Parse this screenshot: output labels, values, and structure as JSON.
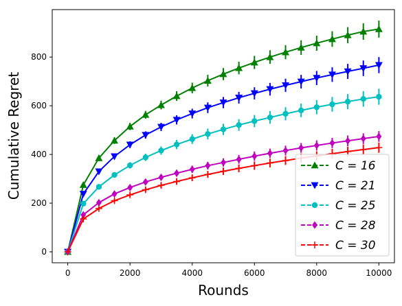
{
  "chart_data": {
    "type": "line",
    "title": "",
    "xlabel": "Rounds",
    "ylabel": "Cumulative Regret",
    "xlim": [
      -500,
      10500
    ],
    "ylim": [
      -45,
      995
    ],
    "xticks": [
      0,
      2000,
      4000,
      6000,
      8000,
      10000
    ],
    "yticks": [
      0,
      200,
      400,
      600,
      800
    ],
    "grid": false,
    "legend_position": "lower-right",
    "x": [
      0,
      500,
      1000,
      1500,
      2000,
      2500,
      3000,
      3500,
      4000,
      4500,
      5000,
      5500,
      6000,
      6500,
      7000,
      7500,
      8000,
      8500,
      9000,
      9500,
      10000
    ],
    "series": [
      {
        "name": "C = 16",
        "color": "#008000",
        "marker": "triangle-up",
        "values": [
          0,
          275,
          385,
          457,
          515,
          563,
          603,
          640,
          673,
          703,
          730,
          755,
          778,
          800,
          820,
          839,
          857,
          874,
          890,
          905,
          915
        ],
        "errors": [
          0,
          10,
          12,
          14,
          15,
          16,
          18,
          20,
          22,
          24,
          25,
          26,
          27,
          28,
          29,
          30,
          31,
          32,
          33,
          34,
          35
        ]
      },
      {
        "name": "C = 21",
        "color": "#0000ff",
        "marker": "triangle-down",
        "values": [
          0,
          238,
          330,
          392,
          440,
          480,
          513,
          542,
          568,
          592,
          613,
          633,
          651,
          668,
          684,
          699,
          714,
          728,
          741,
          754,
          767
        ],
        "errors": [
          0,
          9,
          10,
          12,
          14,
          15,
          17,
          19,
          20,
          22,
          23,
          24,
          25,
          26,
          27,
          28,
          29,
          30,
          31,
          32,
          33
        ]
      },
      {
        "name": "C = 25",
        "color": "#00bfbf",
        "marker": "circle",
        "values": [
          0,
          198,
          267,
          316,
          355,
          388,
          416,
          441,
          463,
          484,
          503,
          521,
          537,
          552,
          567,
          581,
          594,
          606,
          617,
          628,
          637
        ],
        "errors": [
          0,
          8,
          9,
          11,
          13,
          15,
          17,
          19,
          20,
          22,
          23,
          24,
          25,
          26,
          27,
          28,
          29,
          30,
          31,
          32,
          33
        ]
      },
      {
        "name": "C = 28",
        "color": "#bf00bf",
        "marker": "diamond",
        "values": [
          0,
          152,
          202,
          238,
          264,
          287,
          306,
          323,
          339,
          354,
          367,
          380,
          393,
          405,
          416,
          427,
          437,
          447,
          456,
          465,
          474
        ],
        "errors": [
          0,
          7,
          8,
          10,
          11,
          12,
          13,
          14,
          15,
          16,
          17,
          18,
          19,
          19,
          20,
          20,
          21,
          21,
          22,
          22,
          22
        ]
      },
      {
        "name": "C = 30",
        "color": "#ff0000",
        "marker": "plus",
        "values": [
          0,
          135,
          178,
          210,
          234,
          255,
          273,
          289,
          304,
          318,
          331,
          343,
          354,
          365,
          375,
          385,
          394,
          403,
          412,
          420,
          428
        ],
        "errors": [
          0,
          6,
          7,
          8,
          9,
          10,
          11,
          12,
          13,
          14,
          15,
          16,
          17,
          18,
          18,
          19,
          19,
          20,
          20,
          21,
          21
        ]
      }
    ]
  }
}
